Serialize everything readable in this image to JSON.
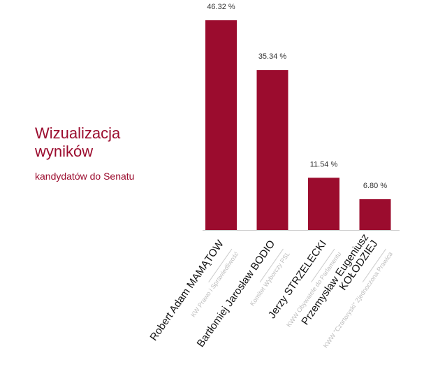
{
  "heading": {
    "title": "Wizualizacja wyników",
    "subtitle": "kandydatów do Senatu"
  },
  "colors": {
    "accent": "#9b0c2e",
    "bar": "#9b0c2e",
    "label": "#333333",
    "committee": "#bdbdbd",
    "axis": "#cccccc"
  },
  "chart_data": {
    "type": "bar",
    "title": "Wizualizacja wyników",
    "subtitle": "kandydatów do Senatu",
    "categories": [
      "Robert Adam MAMĄTOW",
      "Bartłomiej Jarosław BODIO",
      "Jerzy STRZELECKI",
      "Przemysław Eugeniusz KOŁODZIEJ"
    ],
    "committees": [
      "KW Prawo i Sprawiedliwość",
      "Komitet Wyborczy PSL",
      "KWW Obywatele do Parlamentu",
      "KWW \"Czartoryski\" Zjednoczona Prawica"
    ],
    "values": [
      46.32,
      35.34,
      11.54,
      6.8
    ],
    "value_labels": [
      "46.32 %",
      "35.34 %",
      "11.54 %",
      "6.80 %"
    ],
    "ylim": [
      0,
      46.32
    ],
    "grid": false,
    "legend": "none"
  }
}
